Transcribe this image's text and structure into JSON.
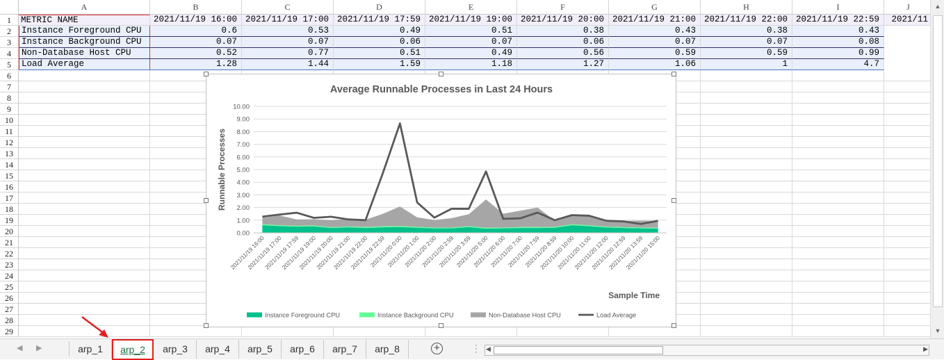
{
  "spreadsheet": {
    "columns": [
      "A",
      "B",
      "C",
      "D",
      "E",
      "F",
      "G",
      "H",
      "I",
      "J"
    ],
    "row_numbers": [
      "1",
      "2",
      "3",
      "4",
      "5",
      "6",
      "7",
      "8",
      "9",
      "10",
      "11",
      "12",
      "13",
      "14",
      "15",
      "16",
      "17",
      "18",
      "19",
      "20",
      "21",
      "22",
      "23",
      "24",
      "25",
      "26",
      "27",
      "28",
      "29"
    ],
    "header_row": [
      "METRIC NAME",
      "2021/11/19 16:00",
      "2021/11/19 17:00",
      "2021/11/19 17:59",
      "2021/11/19 19:00",
      "2021/11/19 20:00",
      "2021/11/19 21:00",
      "2021/11/19 22:00",
      "2021/11/19 22:59",
      "2021/11"
    ],
    "data_rows": [
      [
        "Instance Foreground CPU",
        "0.6",
        "0.53",
        "0.49",
        "0.51",
        "0.38",
        "0.43",
        "0.38",
        "0.43"
      ],
      [
        "Instance Background CPU",
        "0.07",
        "0.07",
        "0.06",
        "0.07",
        "0.06",
        "0.07",
        "0.07",
        "0.08"
      ],
      [
        "Non-Database Host CPU",
        "0.52",
        "0.77",
        "0.51",
        "0.49",
        "0.56",
        "0.59",
        "0.59",
        "0.99"
      ],
      [
        "Load Average",
        "1.28",
        "1.44",
        "1.59",
        "1.18",
        "1.27",
        "1.06",
        "1",
        "4.7"
      ]
    ]
  },
  "chart_data": {
    "type": "area",
    "title": "Average Runnable Processes in Last 24 Hours",
    "xlabel": "Sample Time",
    "ylabel": "Runnable Processes",
    "ylim": [
      0,
      10
    ],
    "yticks": [
      "0.00",
      "1.00",
      "2.00",
      "3.00",
      "4.00",
      "5.00",
      "6.00",
      "7.00",
      "8.00",
      "9.00",
      "10.00"
    ],
    "grid": true,
    "legend_position": "bottom",
    "categories": [
      "2021/11/19 16:00",
      "2021/11/19 17:00",
      "2021/11/19 17:59",
      "2021/11/19 19:00",
      "2021/11/19 20:00",
      "2021/11/19 21:00",
      "2021/11/19 22:00",
      "2021/11/19 22:59",
      "2021/11/20 0:00",
      "2021/11/20 1:00",
      "2021/11/20 2:00",
      "2021/11/20 2:59",
      "2021/11/20 3:59",
      "2021/11/20 5:00",
      "2021/11/20 6:00",
      "2021/11/20 7:00",
      "2021/11/20 7:59",
      "2021/11/20 8:59",
      "2021/11/20 10:00",
      "2021/11/20 11:00",
      "2021/11/20 12:00",
      "2021/11/20 12:59",
      "2021/11/20 13:59",
      "2021/11/20 15:00"
    ],
    "series": [
      {
        "name": "Instance Foreground CPU",
        "type": "stacked-area",
        "color": "#00c08b",
        "values": [
          0.6,
          0.53,
          0.49,
          0.51,
          0.38,
          0.43,
          0.38,
          0.43,
          0.45,
          0.4,
          0.35,
          0.35,
          0.45,
          0.32,
          0.35,
          0.38,
          0.38,
          0.4,
          0.6,
          0.52,
          0.42,
          0.38,
          0.35,
          0.33
        ]
      },
      {
        "name": "Instance Background CPU",
        "type": "stacked-area",
        "color": "#66ff99",
        "values": [
          0.07,
          0.07,
          0.06,
          0.07,
          0.06,
          0.07,
          0.07,
          0.08,
          0.08,
          0.07,
          0.06,
          0.06,
          0.07,
          0.07,
          0.06,
          0.07,
          0.07,
          0.06,
          0.07,
          0.07,
          0.06,
          0.06,
          0.06,
          0.06
        ]
      },
      {
        "name": "Non-Database Host CPU",
        "type": "stacked-area",
        "color": "#a6a6a6",
        "values": [
          0.52,
          0.77,
          0.51,
          0.49,
          0.56,
          0.59,
          0.59,
          0.99,
          1.55,
          0.75,
          0.6,
          0.75,
          0.95,
          2.25,
          1.1,
          1.3,
          1.55,
          0.5,
          0.7,
          0.7,
          0.5,
          0.5,
          0.55,
          0.55
        ]
      },
      {
        "name": "Load Average",
        "type": "line",
        "color": "#595959",
        "values": [
          1.28,
          1.44,
          1.59,
          1.18,
          1.27,
          1.06,
          1.0,
          4.7,
          8.65,
          2.4,
          1.2,
          1.9,
          1.9,
          4.85,
          1.1,
          1.15,
          1.6,
          1.0,
          1.4,
          1.35,
          0.95,
          0.9,
          0.7,
          0.95
        ]
      }
    ]
  },
  "tabs": [
    "arp_1",
    "arp_2",
    "arp_3",
    "arp_4",
    "arp_5",
    "arp_6",
    "arp_7",
    "arp_8"
  ],
  "active_tab": "arp_2",
  "icons": {
    "add_sheet": "plus-circle-icon",
    "prev": "chevron-left-icon",
    "next": "chevron-right-icon",
    "options": "vertical-dots-icon"
  }
}
